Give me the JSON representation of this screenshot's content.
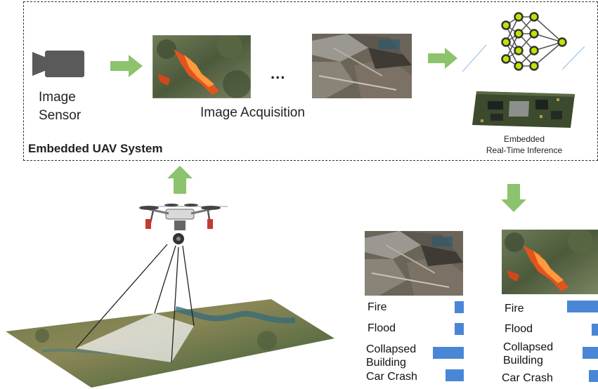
{
  "system": {
    "title": "Embedded UAV System",
    "sensor_label_line1": "Image",
    "sensor_label_line2": "Sensor",
    "acquisition_label": "Image Acquisition",
    "ellipsis": "...",
    "inference_line1": "Embedded",
    "inference_line2": "Real-Time Inference"
  },
  "results": [
    {
      "image": "collapsed-building-photo",
      "classes": [
        {
          "label": "Fire",
          "score": 0.15
        },
        {
          "label": "Flood",
          "score": 0.15
        },
        {
          "label": "Collapsed Building",
          "line1": "Collapsed",
          "line2": "Building",
          "score": 0.5
        },
        {
          "label": "Car Crash",
          "score": 0.3
        }
      ]
    },
    {
      "image": "wildfire-photo",
      "classes": [
        {
          "label": "Fire",
          "score": 0.5
        },
        {
          "label": "Flood",
          "score": 0.1
        },
        {
          "label": "Collapsed Building",
          "line1": "Collapsed",
          "line2": "Building",
          "score": 0.25
        },
        {
          "label": "Car Crash",
          "score": 0.15
        }
      ]
    }
  ],
  "colors": {
    "arrow": "#8cc36d",
    "bar": "#4a86d6",
    "node": "#c6e000"
  }
}
